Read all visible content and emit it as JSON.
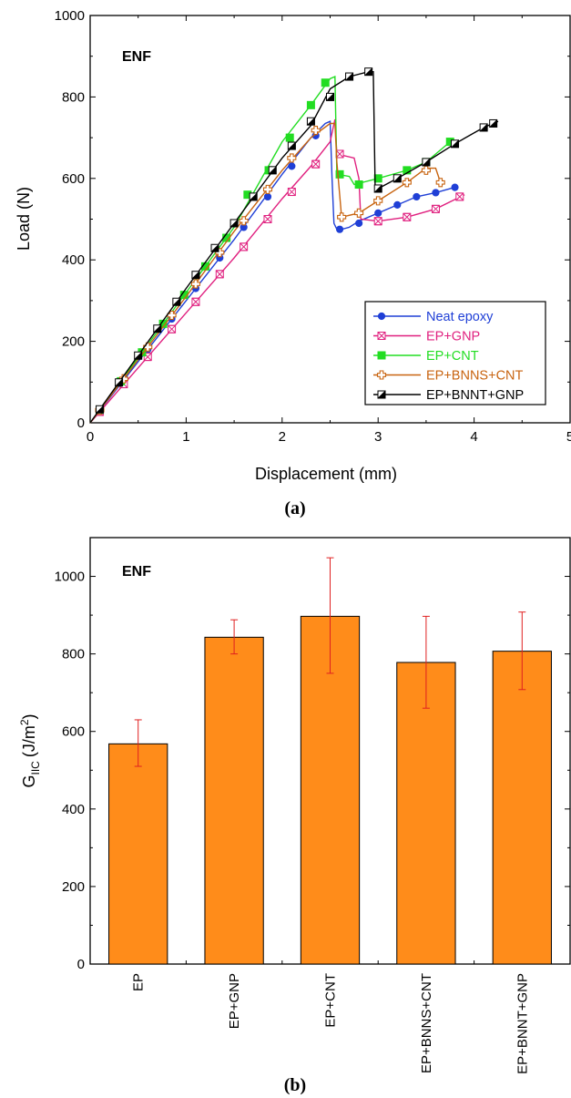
{
  "chart_data": [
    {
      "type": "line",
      "annotation": "ENF",
      "panel_label": "(a)",
      "xlabel": "Displacement (mm)",
      "ylabel": "Load (N)",
      "xlim": [
        0,
        5
      ],
      "ylim": [
        0,
        1000
      ],
      "xticks": [
        0,
        1,
        2,
        3,
        4,
        5
      ],
      "yticks": [
        0,
        200,
        400,
        600,
        800,
        1000
      ],
      "legend_position": "bottom-right",
      "series": [
        {
          "name": "Neat epoxy",
          "color": "#1f3fd6",
          "marker": "filled-circle",
          "x": [
            0,
            0.5,
            1.0,
            1.5,
            2.0,
            2.3,
            2.45,
            2.5,
            2.52,
            2.54,
            2.57,
            2.62,
            2.7,
            2.8,
            3.0,
            3.2,
            3.4,
            3.6,
            3.8
          ],
          "y": [
            0,
            150,
            300,
            450,
            610,
            700,
            735,
            740,
            600,
            490,
            475,
            475,
            480,
            495,
            515,
            535,
            555,
            565,
            578
          ],
          "marker_x": [
            0.1,
            0.35,
            0.6,
            0.85,
            1.1,
            1.35,
            1.6,
            1.85,
            2.1,
            2.35,
            2.6,
            2.8,
            3.0,
            3.2,
            3.4,
            3.6,
            3.8
          ],
          "marker_y": [
            30,
            105,
            180,
            255,
            330,
            405,
            480,
            555,
            630,
            705,
            475,
            490,
            515,
            535,
            555,
            565,
            578
          ]
        },
        {
          "name": "EP+GNP",
          "color": "#e0207f",
          "marker": "hourglass-square",
          "x": [
            0,
            0.5,
            1.0,
            1.5,
            2.0,
            2.3,
            2.5,
            2.55,
            2.57,
            2.75,
            2.8,
            2.82,
            3.0,
            3.3,
            3.6,
            3.9
          ],
          "y": [
            0,
            135,
            270,
            405,
            550,
            630,
            690,
            745,
            660,
            650,
            600,
            500,
            495,
            505,
            525,
            560
          ],
          "marker_x": [
            0.1,
            0.35,
            0.6,
            0.85,
            1.1,
            1.35,
            1.6,
            1.85,
            2.1,
            2.35,
            2.6,
            3.0,
            3.3,
            3.6,
            3.85
          ],
          "marker_y": [
            27,
            95,
            162,
            230,
            297,
            365,
            432,
            500,
            567,
            635,
            660,
            495,
            505,
            525,
            555
          ]
        },
        {
          "name": "EP+CNT",
          "color": "#22dd22",
          "marker": "filled-square",
          "x": [
            0,
            0.5,
            1.0,
            1.5,
            2.0,
            2.3,
            2.5,
            2.55,
            2.57,
            2.7,
            2.75,
            3.0,
            3.3,
            3.5,
            3.75
          ],
          "y": [
            0,
            160,
            320,
            480,
            690,
            780,
            845,
            850,
            610,
            605,
            585,
            600,
            620,
            640,
            690
          ],
          "marker_x": [
            0.1,
            0.32,
            0.54,
            0.76,
            0.98,
            1.2,
            1.42,
            1.64,
            1.86,
            2.08,
            2.3,
            2.45,
            2.6,
            2.8,
            3.0,
            3.3,
            3.5,
            3.75
          ],
          "marker_y": [
            32,
            102,
            173,
            243,
            314,
            384,
            454,
            560,
            620,
            700,
            780,
            835,
            610,
            585,
            600,
            620,
            640,
            690
          ]
        },
        {
          "name": "EP+BNNS+CNT",
          "color": "#c86410",
          "marker": "open-cross",
          "x": [
            0,
            0.5,
            1.0,
            1.5,
            2.0,
            2.3,
            2.5,
            2.55,
            2.57,
            2.62,
            2.8,
            3.0,
            3.3,
            3.5,
            3.6,
            3.65
          ],
          "y": [
            0,
            155,
            310,
            470,
            620,
            700,
            735,
            735,
            640,
            505,
            515,
            545,
            590,
            625,
            625,
            590
          ],
          "marker_x": [
            0.1,
            0.35,
            0.6,
            0.85,
            1.1,
            1.35,
            1.6,
            1.85,
            2.1,
            2.35,
            2.62,
            2.8,
            3.0,
            3.3,
            3.5,
            3.65
          ],
          "marker_y": [
            31,
            108,
            186,
            264,
            341,
            418,
            496,
            573,
            650,
            718,
            505,
            515,
            545,
            590,
            620,
            590
          ]
        },
        {
          "name": "EP+BNNT+GNP",
          "color": "#000000",
          "marker": "half-filled-square",
          "x": [
            0,
            0.5,
            1.0,
            1.5,
            2.0,
            2.3,
            2.5,
            2.7,
            2.9,
            2.95,
            2.97,
            3.0,
            3.2,
            3.5,
            3.8,
            4.1,
            4.25
          ],
          "y": [
            0,
            165,
            330,
            490,
            650,
            730,
            820,
            850,
            862,
            862,
            570,
            575,
            600,
            640,
            685,
            725,
            740
          ],
          "marker_x": [
            0.1,
            0.3,
            0.5,
            0.7,
            0.9,
            1.1,
            1.3,
            1.5,
            1.7,
            1.9,
            2.1,
            2.3,
            2.5,
            2.7,
            2.9,
            3.0,
            3.2,
            3.5,
            3.8,
            4.1,
            4.2
          ],
          "marker_y": [
            33,
            99,
            165,
            231,
            297,
            363,
            429,
            490,
            555,
            620,
            680,
            740,
            800,
            850,
            862,
            575,
            600,
            640,
            685,
            725,
            735
          ]
        }
      ]
    },
    {
      "type": "bar",
      "annotation": "ENF",
      "panel_label": "(b)",
      "ylabel_main": "G",
      "ylabel_sub": "IIC",
      "ylabel_unit_pre": "(J/m",
      "ylabel_unit_sup": "2",
      "ylabel_unit_post": ")",
      "ylim": [
        0,
        1100
      ],
      "yticks": [
        0,
        200,
        400,
        600,
        800,
        1000
      ],
      "categories": [
        "EP",
        "EP+GNP",
        "EP+CNT",
        "EP+BNNS+CNT",
        "EP+BNNT+GNP"
      ],
      "values": [
        568,
        843,
        897,
        778,
        807
      ],
      "error_low": [
        510,
        800,
        750,
        660,
        708
      ],
      "error_high": [
        630,
        888,
        1048,
        897,
        908
      ],
      "bar_color": "#ff8c1a",
      "error_color": "#e02020"
    }
  ]
}
